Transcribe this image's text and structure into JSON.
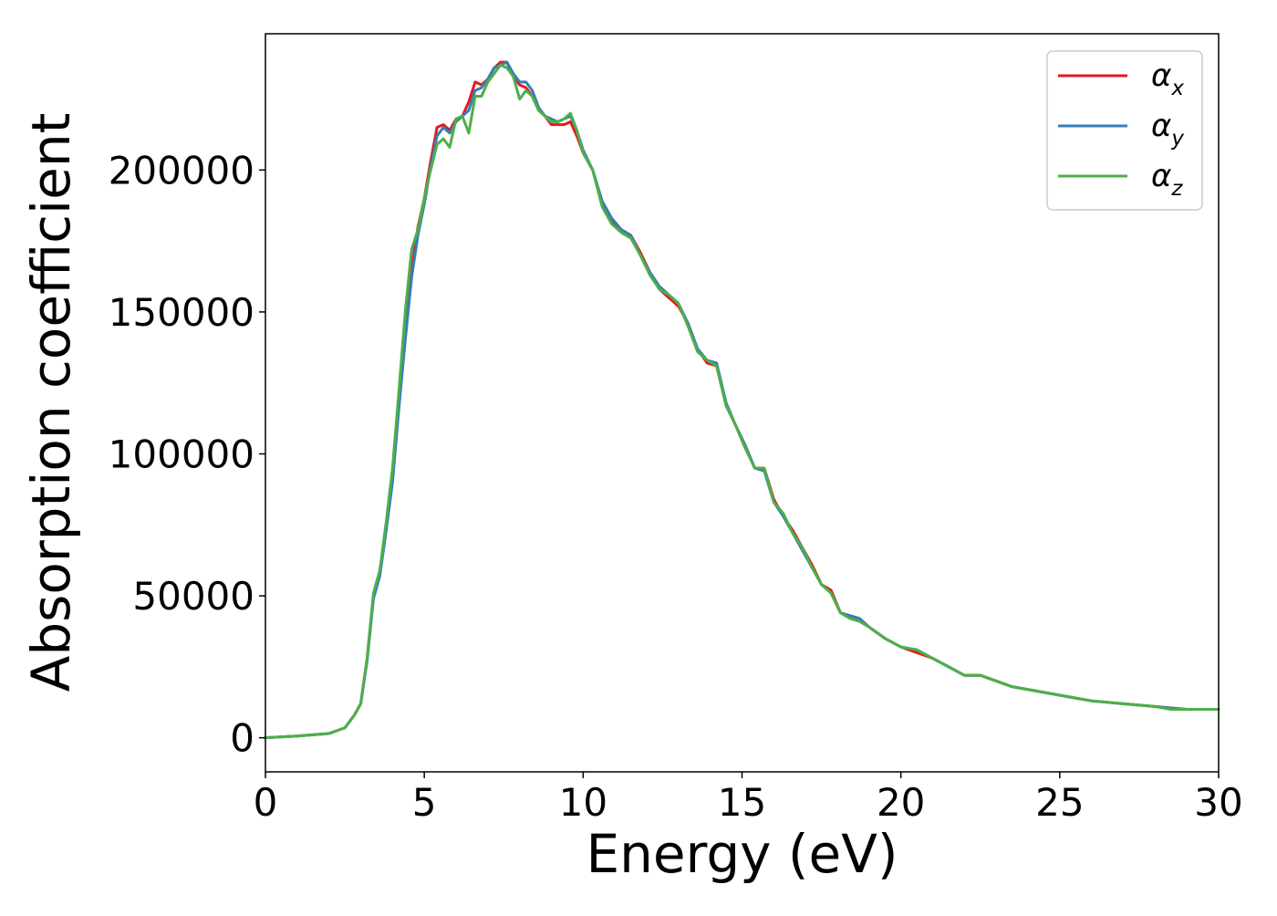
{
  "chart_data": {
    "type": "line",
    "title": "",
    "xlabel": "Energy (eV)",
    "ylabel": "Absorption coefficient",
    "xlim": [
      0,
      30
    ],
    "ylim": [
      -12000,
      248000
    ],
    "xticks": [
      0,
      5,
      10,
      15,
      20,
      25,
      30
    ],
    "xtick_labels": [
      "0",
      "5",
      "10",
      "15",
      "20",
      "25",
      "30"
    ],
    "yticks": [
      0,
      50000,
      100000,
      150000,
      200000
    ],
    "ytick_labels": [
      "0",
      "50000",
      "100000",
      "150000",
      "200000"
    ],
    "grid": false,
    "legend_position": "top-right",
    "series": [
      {
        "name": "α_x",
        "base": "α",
        "subscript": "x",
        "color": "#e41a1c",
        "x": [
          0,
          1,
          2,
          2.5,
          2.8,
          3,
          3.2,
          3.4,
          3.6,
          3.8,
          4,
          4.2,
          4.4,
          4.6,
          4.8,
          5,
          5.2,
          5.4,
          5.6,
          5.8,
          6,
          6.2,
          6.4,
          6.6,
          6.8,
          7,
          7.2,
          7.4,
          7.6,
          7.8,
          8,
          8.2,
          8.4,
          8.6,
          8.8,
          9,
          9.2,
          9.4,
          9.6,
          9.8,
          10,
          10.3,
          10.6,
          10.9,
          11.2,
          11.5,
          11.8,
          12.1,
          12.4,
          12.7,
          13,
          13.3,
          13.6,
          13.9,
          14.2,
          14.5,
          14.8,
          15.1,
          15.4,
          15.7,
          16,
          16.3,
          16.6,
          16.9,
          17.2,
          17.5,
          17.8,
          18.1,
          18.4,
          18.7,
          19,
          19.5,
          20,
          20.5,
          21,
          21.5,
          22,
          22.5,
          23,
          23.5,
          24,
          24.5,
          25,
          25.5,
          26,
          26.5,
          27,
          27.5,
          28,
          28.5,
          29,
          29.5,
          30
        ],
        "values": [
          0,
          600,
          1500,
          3500,
          8000,
          12000,
          28000,
          50000,
          58000,
          75000,
          92000,
          118000,
          142000,
          165000,
          180000,
          190000,
          203000,
          215000,
          216000,
          214000,
          218000,
          219000,
          224000,
          231000,
          230000,
          232000,
          236000,
          238000,
          238000,
          233000,
          230000,
          229000,
          226000,
          221000,
          219000,
          216000,
          216000,
          216000,
          217000,
          212000,
          206000,
          200000,
          188000,
          182000,
          179000,
          177000,
          171000,
          164000,
          158000,
          155000,
          152000,
          146000,
          137000,
          132000,
          131000,
          117000,
          110000,
          103000,
          95000,
          95000,
          84000,
          78000,
          73000,
          67000,
          61000,
          54000,
          52000,
          44000,
          43000,
          42000,
          39000,
          35000,
          32000,
          30000,
          28000,
          25000,
          22000,
          22000,
          20000,
          18000,
          17000,
          16000,
          15000,
          14000,
          13000,
          12500,
          12000,
          11500,
          11000,
          10500,
          10000,
          10000,
          10000
        ]
      },
      {
        "name": "α_y",
        "base": "α",
        "subscript": "y",
        "color": "#377eb8",
        "x": [
          0,
          1,
          2,
          2.5,
          2.8,
          3,
          3.2,
          3.4,
          3.6,
          3.8,
          4,
          4.2,
          4.4,
          4.6,
          4.8,
          5,
          5.2,
          5.4,
          5.6,
          5.8,
          6,
          6.2,
          6.4,
          6.6,
          6.8,
          7,
          7.2,
          7.4,
          7.6,
          7.8,
          8,
          8.2,
          8.4,
          8.6,
          8.8,
          9,
          9.2,
          9.4,
          9.6,
          9.8,
          10,
          10.3,
          10.6,
          10.9,
          11.2,
          11.5,
          11.8,
          12.1,
          12.4,
          12.7,
          13,
          13.3,
          13.6,
          13.9,
          14.2,
          14.5,
          14.8,
          15.1,
          15.4,
          15.7,
          16,
          16.3,
          16.6,
          16.9,
          17.2,
          17.5,
          17.8,
          18.1,
          18.4,
          18.7,
          19,
          19.5,
          20,
          20.5,
          21,
          21.5,
          22,
          22.5,
          23,
          23.5,
          24,
          24.5,
          25,
          25.5,
          26,
          26.5,
          27,
          27.5,
          28,
          28.5,
          29,
          29.5,
          30
        ],
        "values": [
          0,
          600,
          1500,
          3500,
          8000,
          12000,
          27000,
          49000,
          57000,
          73000,
          90000,
          116000,
          140000,
          162000,
          177000,
          188000,
          201000,
          212000,
          215000,
          213000,
          217000,
          219000,
          221000,
          228000,
          229000,
          232000,
          236000,
          237000,
          238000,
          234000,
          231000,
          231000,
          228000,
          222000,
          219000,
          218000,
          217000,
          218000,
          219000,
          214000,
          207000,
          200000,
          189000,
          183000,
          179000,
          177000,
          170000,
          164000,
          159000,
          156000,
          153000,
          146000,
          137000,
          133000,
          132000,
          118000,
          110000,
          103000,
          95000,
          94000,
          83000,
          78000,
          72000,
          66000,
          60000,
          54000,
          51000,
          44000,
          43000,
          42000,
          39000,
          35000,
          32000,
          31000,
          28000,
          25000,
          22000,
          22000,
          20000,
          18000,
          17000,
          16000,
          15000,
          14000,
          13000,
          12500,
          12000,
          11500,
          11000,
          10500,
          10000,
          10000,
          10000
        ]
      },
      {
        "name": "α_z",
        "base": "α",
        "subscript": "z",
        "color": "#4daf4a",
        "x": [
          0,
          1,
          2,
          2.5,
          2.8,
          3,
          3.2,
          3.4,
          3.6,
          3.8,
          4,
          4.2,
          4.4,
          4.6,
          4.8,
          5,
          5.2,
          5.4,
          5.6,
          5.8,
          6,
          6.2,
          6.4,
          6.6,
          6.8,
          7,
          7.2,
          7.4,
          7.6,
          7.8,
          8,
          8.2,
          8.4,
          8.6,
          8.8,
          9,
          9.2,
          9.4,
          9.6,
          9.8,
          10,
          10.3,
          10.6,
          10.9,
          11.2,
          11.5,
          11.8,
          12.1,
          12.4,
          12.7,
          13,
          13.3,
          13.6,
          13.9,
          14.2,
          14.5,
          14.8,
          15.1,
          15.4,
          15.7,
          16,
          16.3,
          16.6,
          16.9,
          17.2,
          17.5,
          17.8,
          18.1,
          18.4,
          18.7,
          19,
          19.5,
          20,
          20.5,
          21,
          21.5,
          22,
          22.5,
          23,
          23.5,
          24,
          24.5,
          25,
          25.5,
          26,
          26.5,
          27,
          27.5,
          28,
          28.5,
          29,
          29.5,
          30
        ],
        "values": [
          0,
          600,
          1500,
          3500,
          8000,
          12000,
          28000,
          51000,
          59000,
          76000,
          95000,
          122000,
          150000,
          172000,
          179000,
          190000,
          200000,
          209000,
          211000,
          208000,
          218000,
          219000,
          213000,
          226000,
          226000,
          231000,
          234000,
          237000,
          236000,
          233000,
          225000,
          228000,
          226000,
          221000,
          219000,
          217000,
          217000,
          218000,
          220000,
          214000,
          206000,
          200000,
          187000,
          181000,
          178000,
          176000,
          170000,
          163000,
          158000,
          156000,
          153000,
          145000,
          136000,
          133000,
          131000,
          117000,
          110000,
          102000,
          95000,
          95000,
          83000,
          79000,
          72000,
          67000,
          60000,
          54000,
          51000,
          44000,
          42000,
          41000,
          39000,
          35000,
          32000,
          31000,
          28000,
          25000,
          22000,
          22000,
          20000,
          18000,
          17000,
          16000,
          15000,
          14000,
          13000,
          12500,
          12000,
          11500,
          11000,
          10000,
          10000,
          10000,
          10000
        ]
      }
    ]
  }
}
